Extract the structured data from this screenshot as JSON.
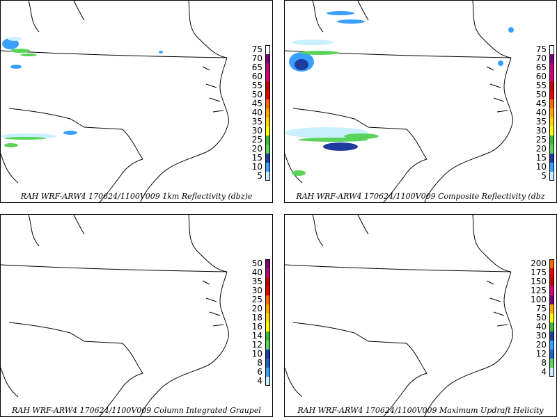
{
  "panels": [
    {
      "caption": "RAH WRF-ARW4 170624/1100V009  1km Reflectivity (dbz)e",
      "colorbar": [
        {
          "label": "75",
          "color": "#ffffff"
        },
        {
          "label": "70",
          "color": "#7a007a"
        },
        {
          "label": "65",
          "color": "#b8007a"
        },
        {
          "label": "60",
          "color": "#d4007a"
        },
        {
          "label": "55",
          "color": "#c00000"
        },
        {
          "label": "50",
          "color": "#e60000"
        },
        {
          "label": "45",
          "color": "#ff6600"
        },
        {
          "label": "40",
          "color": "#ffa500"
        },
        {
          "label": "35",
          "color": "#ffd700"
        },
        {
          "label": "30",
          "color": "#ffff00"
        },
        {
          "label": "25",
          "color": "#3cb83c"
        },
        {
          "label": "20",
          "color": "#5ad35a"
        },
        {
          "label": "15",
          "color": "#1e3c9e"
        },
        {
          "label": "10",
          "color": "#39a0ff"
        },
        {
          "label": "5",
          "color": "#c8f0ff"
        }
      ]
    },
    {
      "caption": "RAH WRF-ARW4 170624/1100V009  Composite Reflectivity (dbz",
      "colorbar": [
        {
          "label": "75",
          "color": "#ffffff"
        },
        {
          "label": "70",
          "color": "#7a007a"
        },
        {
          "label": "65",
          "color": "#b8007a"
        },
        {
          "label": "60",
          "color": "#d4007a"
        },
        {
          "label": "55",
          "color": "#c00000"
        },
        {
          "label": "50",
          "color": "#e60000"
        },
        {
          "label": "45",
          "color": "#ff6600"
        },
        {
          "label": "40",
          "color": "#ffa500"
        },
        {
          "label": "35",
          "color": "#ffd700"
        },
        {
          "label": "30",
          "color": "#ffff00"
        },
        {
          "label": "25",
          "color": "#3cb83c"
        },
        {
          "label": "20",
          "color": "#5ad35a"
        },
        {
          "label": "15",
          "color": "#1e3c9e"
        },
        {
          "label": "10",
          "color": "#39a0ff"
        },
        {
          "label": "5",
          "color": "#c8f0ff"
        }
      ]
    },
    {
      "caption": "RAH WRF-ARW4 170624/1100V009  Column Integrated Graupel",
      "colorbar": [
        {
          "label": "50",
          "color": "#7a007a"
        },
        {
          "label": "40",
          "color": "#b8007a"
        },
        {
          "label": "35",
          "color": "#c00000"
        },
        {
          "label": "30",
          "color": "#e60000"
        },
        {
          "label": "25",
          "color": "#ff6600"
        },
        {
          "label": "20",
          "color": "#ffa500"
        },
        {
          "label": "18",
          "color": "#ffd700"
        },
        {
          "label": "16",
          "color": "#ffff00"
        },
        {
          "label": "14",
          "color": "#3cb83c"
        },
        {
          "label": "12",
          "color": "#5ad35a"
        },
        {
          "label": "10",
          "color": "#1e3c9e"
        },
        {
          "label": "8",
          "color": "#1e64c8"
        },
        {
          "label": "6",
          "color": "#39a0ff"
        },
        {
          "label": "4",
          "color": "#c8f0ff"
        }
      ]
    },
    {
      "caption": "RAH WRF-ARW4 170624/1100V009  Maximum Updraft Helicity",
      "colorbar": [
        {
          "label": "200",
          "color": "#ff6600"
        },
        {
          "label": "175",
          "color": "#e60000"
        },
        {
          "label": "150",
          "color": "#c00000"
        },
        {
          "label": "125",
          "color": "#d4007a"
        },
        {
          "label": "100",
          "color": "#7a007a"
        },
        {
          "label": "75",
          "color": "#ffa500"
        },
        {
          "label": "50",
          "color": "#ffff00"
        },
        {
          "label": "40",
          "color": "#3cb83c"
        },
        {
          "label": "30",
          "color": "#1e3c9e"
        },
        {
          "label": "20",
          "color": "#39a0ff"
        },
        {
          "label": "12",
          "color": "#1e64c8"
        },
        {
          "label": "8",
          "color": "#5ad35a"
        },
        {
          "label": "4",
          "color": "#c8f0ff"
        }
      ]
    }
  ]
}
